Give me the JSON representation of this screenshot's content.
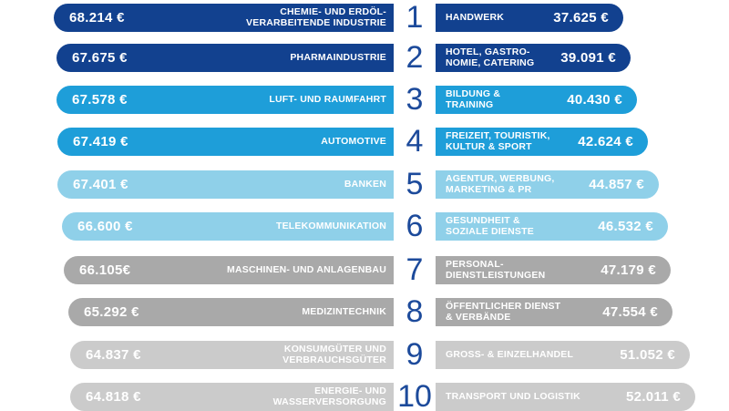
{
  "colors": {
    "tier_colors": [
      "#12418f",
      "#1e9ed9",
      "#8fd0e9",
      "#a9a9a9",
      "#cbcbcb"
    ],
    "rank_number": "#1c4a9b",
    "bar_text": "#ffffff",
    "background": "#ffffff"
  },
  "chart_data": {
    "type": "bar",
    "layout": "dual_horizontal_ranking",
    "unit": "EUR",
    "legend_position": "none",
    "grid": false,
    "ranks": [
      "1",
      "2",
      "3",
      "4",
      "5",
      "6",
      "7",
      "8",
      "9",
      "10"
    ],
    "left": [
      {
        "rank": "1",
        "label": "CHEMIE- UND ERDÖL-\nVERARBEITENDE INDUSTRIE",
        "value_text": "68.214 €",
        "amount": 68214,
        "tier": 0
      },
      {
        "rank": "2",
        "label": "PHARMAINDUSTRIE",
        "value_text": "67.675 €",
        "amount": 67675,
        "tier": 0
      },
      {
        "rank": "3",
        "label": "LUFT- UND RAUMFAHRT",
        "value_text": "67.578 €",
        "amount": 67578,
        "tier": 1
      },
      {
        "rank": "4",
        "label": "AUTOMOTIVE",
        "value_text": "67.419 €",
        "amount": 67419,
        "tier": 1
      },
      {
        "rank": "5",
        "label": "BANKEN",
        "value_text": "67.401 €",
        "amount": 67401,
        "tier": 2
      },
      {
        "rank": "6",
        "label": "TELEKOMMUNIKATION",
        "value_text": "66.600 €",
        "amount": 66600,
        "tier": 2
      },
      {
        "rank": "7",
        "label": "MASCHINEN- UND ANLAGENBAU",
        "value_text": "66.105€",
        "amount": 66105,
        "tier": 3
      },
      {
        "rank": "8",
        "label": "MEDIZINTECHNIK",
        "value_text": "65.292 €",
        "amount": 65292,
        "tier": 3
      },
      {
        "rank": "9",
        "label": "KONSUMGÜTER UND\nVERBRAUCHSGÜTER",
        "value_text": "64.837 €",
        "amount": 64837,
        "tier": 4
      },
      {
        "rank": "10",
        "label": "ENERGIE- UND\nWASSERVERSORGUNG",
        "value_text": "64.818 €",
        "amount": 64818,
        "tier": 4
      }
    ],
    "right": [
      {
        "rank": "1",
        "label": "HANDWERK",
        "value_text": "37.625 €",
        "amount": 37625,
        "tier": 0
      },
      {
        "rank": "2",
        "label": "HOTEL, GASTRO-\nNOMIE, CATERING",
        "value_text": "39.091 €",
        "amount": 39091,
        "tier": 0
      },
      {
        "rank": "3",
        "label": "BILDUNG &\nTRAINING",
        "value_text": "40.430 €",
        "amount": 40430,
        "tier": 1
      },
      {
        "rank": "4",
        "label": "FREIZEIT, TOURISTIK,\nKULTUR & SPORT",
        "value_text": "42.624 €",
        "amount": 42624,
        "tier": 1
      },
      {
        "rank": "5",
        "label": "AGENTUR, WERBUNG,\nMARKETING & PR",
        "value_text": "44.857 €",
        "amount": 44857,
        "tier": 2
      },
      {
        "rank": "6",
        "label": "GESUNDHEIT &\nSOZIALE DIENSTE",
        "value_text": "46.532 €",
        "amount": 46532,
        "tier": 2
      },
      {
        "rank": "7",
        "label": "PERSONAL-\nDIENSTLEISTUNGEN",
        "value_text": "47.179 €",
        "amount": 47179,
        "tier": 3
      },
      {
        "rank": "8",
        "label": "ÖFFENTLICHER DIENST\n& VERBÄNDE",
        "value_text": "47.554 €",
        "amount": 47554,
        "tier": 3
      },
      {
        "rank": "9",
        "label": "GROSS- & EINZELHANDEL",
        "value_text": "51.052 €",
        "amount": 51052,
        "tier": 4
      },
      {
        "rank": "10",
        "label": "TRANSPORT UND LOGISTIK",
        "value_text": "52.011 €",
        "amount": 52011,
        "tier": 4
      }
    ]
  }
}
